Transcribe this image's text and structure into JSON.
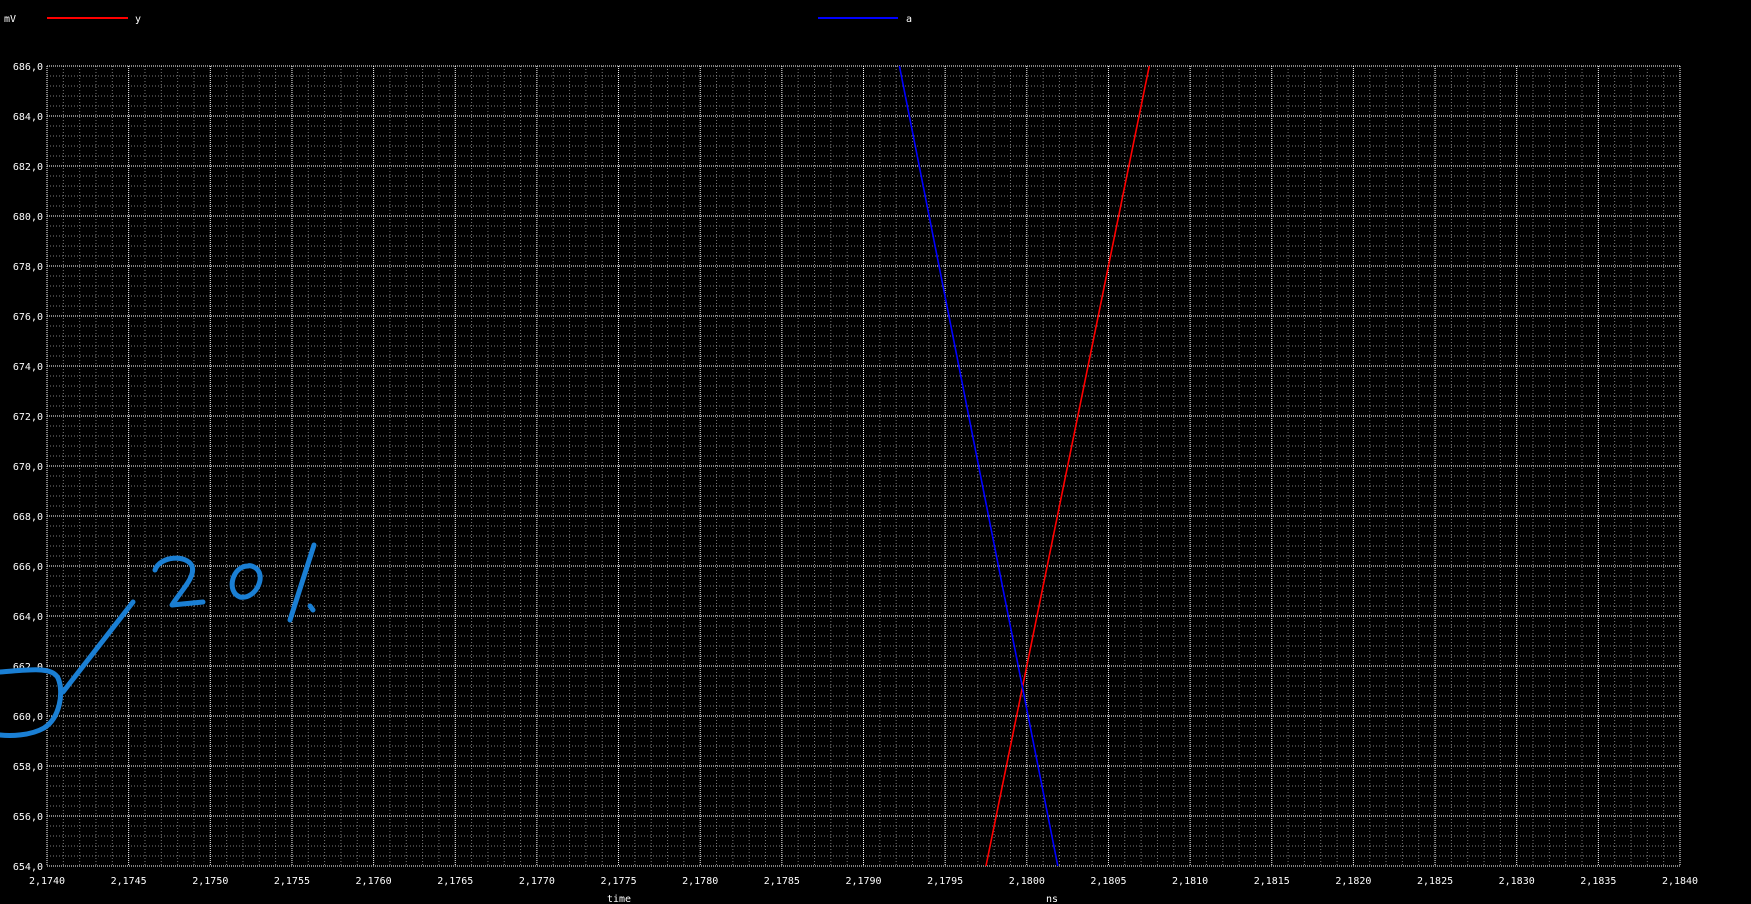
{
  "chart_data": {
    "type": "line",
    "y_unit": "mV",
    "xlabel": "time",
    "x_unit": "ns",
    "xlim": [
      2.174,
      2.184
    ],
    "ylim": [
      654.0,
      686.0
    ],
    "x_ticks": [
      "2,1740",
      "2,1745",
      "2,1750",
      "2,1755",
      "2,1760",
      "2,1765",
      "2,1770",
      "2,1775",
      "2,1780",
      "2,1785",
      "2,1790",
      "2,1795",
      "2,1800",
      "2,1805",
      "2,1810",
      "2,1815",
      "2,1820",
      "2,1825",
      "2,1830",
      "2,1835",
      "2,1840"
    ],
    "y_ticks": [
      "654,0",
      "656,0",
      "658,0",
      "660,0",
      "662,0",
      "664,0",
      "666,0",
      "668,0",
      "670,0",
      "672,0",
      "674,0",
      "676,0",
      "678,0",
      "680,0",
      "682,0",
      "684,0",
      "686,0"
    ],
    "x_tick_values": [
      2.174,
      2.1745,
      2.175,
      2.1755,
      2.176,
      2.1765,
      2.177,
      2.1775,
      2.178,
      2.1785,
      2.179,
      2.1795,
      2.18,
      2.1805,
      2.181,
      2.1815,
      2.182,
      2.1825,
      2.183,
      2.1835,
      2.184
    ],
    "y_tick_values": [
      654,
      656,
      658,
      660,
      662,
      664,
      666,
      668,
      670,
      672,
      674,
      676,
      678,
      680,
      682,
      684,
      686
    ],
    "grid": true,
    "legend_position": "top",
    "series": [
      {
        "name": "y",
        "color": "#ff0000",
        "x": [
          2.17975,
          2.18075
        ],
        "y": [
          654.0,
          686.0
        ]
      },
      {
        "name": "a",
        "color": "#0000ff",
        "x": [
          2.17922,
          2.18019
        ],
        "y": [
          686.0,
          654.0
        ]
      }
    ]
  },
  "annotation": {
    "text": "20%",
    "color": "#1a7fd4"
  }
}
